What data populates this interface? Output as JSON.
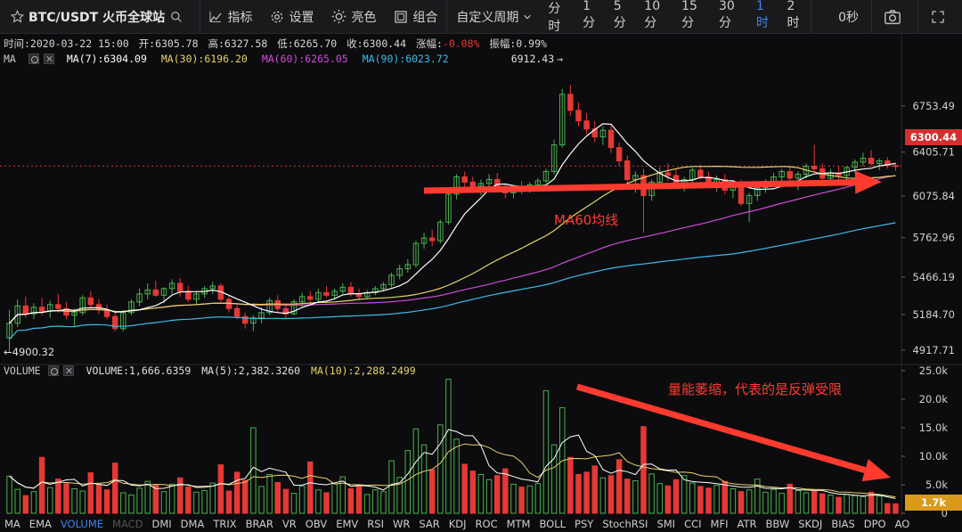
{
  "toolbar": {
    "symbol": "BTC/USDT 火币全球站",
    "indicators": "指标",
    "settings": "设置",
    "theme": "亮色",
    "compose": "组合",
    "custom_period": "自定义周期",
    "periods": [
      "分时",
      "1分",
      "5分",
      "10分",
      "15分",
      "30分",
      "1时",
      "2时"
    ],
    "active_period": "1时",
    "countdown": "0秒"
  },
  "info": {
    "time": "时间:2020-03-22 15:00",
    "open": "开:6305.78",
    "high": "高:6327.58",
    "low": "低:6265.70",
    "close": "收:6300.44",
    "change_label": "涨幅:",
    "change_value": "-0.08%",
    "amplitude": "振幅:0.99%"
  },
  "ma_row": {
    "label": "MA",
    "ma7": "MA(7):6304.09",
    "ma30": "MA(30):6196.20",
    "ma60": "MA(60):6265.05",
    "ma90": "MA(90):6023.72",
    "high_mark": "6912.43"
  },
  "volume_row": {
    "label": "VOLUME",
    "volume": "VOLUME:1,666.6359",
    "ma5": "MA(5):2,382.3260",
    "ma10": "MA(10):2,288.2499"
  },
  "annotations": {
    "ma60_text": "MA60均线",
    "volume_text": "量能萎缩，代表的是反弹受限"
  },
  "current_price": "6300.44",
  "current_volume": "1.7k",
  "indicators_bar": [
    "MA",
    "EMA",
    "VOLUME",
    "MACD",
    "DMI",
    "DMA",
    "TRIX",
    "BRAR",
    "VR",
    "OBV",
    "EMV",
    "RSI",
    "WR",
    "SAR",
    "KDJ",
    "ROC",
    "MTM",
    "BOLL",
    "PSY",
    "StochRSI",
    "SMI",
    "CCI",
    "MFI",
    "ATR",
    "BBW",
    "SKDJ",
    "BIAS",
    "DPO",
    "AO"
  ],
  "colors": {
    "up": "#4caf50",
    "down": "#e53935",
    "ma7": "#ffffff",
    "ma30": "#e6d36a",
    "ma60": "#d24ad8",
    "ma90": "#41b8e8",
    "accent": "#3d86e6",
    "annotation": "#ff3b30"
  },
  "chart_data": {
    "type": "candlestick",
    "price_axis_ticks": [
      "6753.49",
      "6405.71",
      "6075.84",
      "5762.96",
      "5466.19",
      "5184.70",
      "4917.71"
    ],
    "volume_axis_ticks": [
      "25.0k",
      "20.0k",
      "15.0k",
      "10.0k",
      "5.0k",
      "0"
    ],
    "price_range": [
      4830,
      7040
    ],
    "volume_range": [
      0,
      25000
    ],
    "low_mark": "4900.32",
    "candles": [
      [
        5010,
        5220,
        4905,
        5120
      ],
      [
        5120,
        5300,
        5090,
        5250
      ],
      [
        5250,
        5320,
        5160,
        5190
      ],
      [
        5190,
        5270,
        5150,
        5240
      ],
      [
        5240,
        5310,
        5180,
        5210
      ],
      [
        5210,
        5290,
        5160,
        5260
      ],
      [
        5260,
        5340,
        5200,
        5230
      ],
      [
        5230,
        5280,
        5150,
        5180
      ],
      [
        5180,
        5230,
        5100,
        5200
      ],
      [
        5200,
        5330,
        5180,
        5310
      ],
      [
        5310,
        5360,
        5240,
        5260
      ],
      [
        5260,
        5300,
        5190,
        5220
      ],
      [
        5220,
        5260,
        5150,
        5170
      ],
      [
        5170,
        5210,
        5060,
        5080
      ],
      [
        5080,
        5220,
        5060,
        5200
      ],
      [
        5200,
        5300,
        5180,
        5280
      ],
      [
        5280,
        5380,
        5250,
        5340
      ],
      [
        5340,
        5420,
        5300,
        5370
      ],
      [
        5370,
        5440,
        5320,
        5330
      ],
      [
        5330,
        5390,
        5270,
        5380
      ],
      [
        5380,
        5450,
        5340,
        5420
      ],
      [
        5420,
        5460,
        5320,
        5360
      ],
      [
        5360,
        5400,
        5280,
        5300
      ],
      [
        5300,
        5360,
        5260,
        5340
      ],
      [
        5340,
        5400,
        5310,
        5380
      ],
      [
        5380,
        5430,
        5340,
        5400
      ],
      [
        5400,
        5420,
        5280,
        5300
      ],
      [
        5300,
        5330,
        5200,
        5230
      ],
      [
        5230,
        5260,
        5150,
        5170
      ],
      [
        5170,
        5200,
        5080,
        5120
      ],
      [
        5120,
        5180,
        5060,
        5160
      ],
      [
        5160,
        5240,
        5120,
        5200
      ],
      [
        5200,
        5310,
        5180,
        5290
      ],
      [
        5290,
        5330,
        5200,
        5230
      ],
      [
        5230,
        5260,
        5160,
        5190
      ],
      [
        5190,
        5300,
        5180,
        5280
      ],
      [
        5280,
        5350,
        5240,
        5320
      ],
      [
        5320,
        5360,
        5260,
        5300
      ],
      [
        5300,
        5380,
        5280,
        5350
      ],
      [
        5350,
        5400,
        5310,
        5330
      ],
      [
        5330,
        5380,
        5300,
        5360
      ],
      [
        5360,
        5420,
        5340,
        5390
      ],
      [
        5390,
        5430,
        5320,
        5340
      ],
      [
        5340,
        5380,
        5290,
        5320
      ],
      [
        5320,
        5370,
        5300,
        5350
      ],
      [
        5350,
        5400,
        5330,
        5380
      ],
      [
        5380,
        5430,
        5360,
        5410
      ],
      [
        5410,
        5500,
        5390,
        5480
      ],
      [
        5480,
        5560,
        5450,
        5530
      ],
      [
        5530,
        5600,
        5500,
        5560
      ],
      [
        5560,
        5740,
        5540,
        5720
      ],
      [
        5720,
        5800,
        5680,
        5760
      ],
      [
        5760,
        5820,
        5700,
        5740
      ],
      [
        5740,
        5900,
        5720,
        5880
      ],
      [
        5880,
        6120,
        5860,
        6090
      ],
      [
        6090,
        6240,
        6050,
        6220
      ],
      [
        6220,
        6260,
        6140,
        6180
      ],
      [
        6180,
        6220,
        6100,
        6150
      ],
      [
        6150,
        6200,
        6080,
        6170
      ],
      [
        6170,
        6240,
        6130,
        6200
      ],
      [
        6200,
        6250,
        6120,
        6140
      ],
      [
        6140,
        6170,
        6060,
        6100
      ],
      [
        6100,
        6160,
        6060,
        6140
      ],
      [
        6140,
        6190,
        6090,
        6120
      ],
      [
        6120,
        6180,
        6100,
        6160
      ],
      [
        6160,
        6210,
        6120,
        6190
      ],
      [
        6190,
        6280,
        6170,
        6260
      ],
      [
        6260,
        6500,
        6240,
        6460
      ],
      [
        6460,
        6880,
        6440,
        6840
      ],
      [
        6840,
        6912,
        6680,
        6720
      ],
      [
        6720,
        6780,
        6600,
        6640
      ],
      [
        6640,
        6700,
        6540,
        6580
      ],
      [
        6580,
        6640,
        6480,
        6520
      ],
      [
        6520,
        6600,
        6460,
        6570
      ],
      [
        6570,
        6620,
        6400,
        6440
      ],
      [
        6440,
        6480,
        6300,
        6340
      ],
      [
        6340,
        6380,
        6150,
        6200
      ],
      [
        6200,
        6260,
        6100,
        6230
      ],
      [
        6230,
        6280,
        5800,
        6080
      ],
      [
        6080,
        6200,
        6040,
        6180
      ],
      [
        6180,
        6290,
        6150,
        6250
      ],
      [
        6250,
        6320,
        6190,
        6230
      ],
      [
        6230,
        6280,
        6130,
        6160
      ],
      [
        6160,
        6220,
        6110,
        6200
      ],
      [
        6200,
        6290,
        6170,
        6270
      ],
      [
        6270,
        6310,
        6200,
        6220
      ],
      [
        6220,
        6260,
        6140,
        6170
      ],
      [
        6170,
        6230,
        6110,
        6200
      ],
      [
        6200,
        6240,
        6090,
        6120
      ],
      [
        6120,
        6180,
        6060,
        6150
      ],
      [
        6150,
        6200,
        6000,
        6020
      ],
      [
        6020,
        6100,
        5880,
        6080
      ],
      [
        6080,
        6160,
        6040,
        6140
      ],
      [
        6140,
        6200,
        6100,
        6180
      ],
      [
        6180,
        6250,
        6150,
        6220
      ],
      [
        6220,
        6280,
        6190,
        6260
      ],
      [
        6260,
        6300,
        6180,
        6210
      ],
      [
        6210,
        6260,
        6120,
        6240
      ],
      [
        6240,
        6320,
        6210,
        6300
      ],
      [
        6300,
        6460,
        6260,
        6280
      ],
      [
        6280,
        6320,
        6190,
        6210
      ],
      [
        6210,
        6280,
        6170,
        6250
      ],
      [
        6250,
        6300,
        6200,
        6230
      ],
      [
        6230,
        6300,
        6200,
        6290
      ],
      [
        6290,
        6350,
        6250,
        6330
      ],
      [
        6330,
        6400,
        6300,
        6360
      ],
      [
        6360,
        6420,
        6300,
        6320
      ],
      [
        6320,
        6360,
        6270,
        6340
      ],
      [
        6340,
        6370,
        6280,
        6305
      ],
      [
        6305,
        6327,
        6265,
        6300
      ]
    ],
    "volumes": [
      6500,
      4200,
      3100,
      3800,
      9800,
      4500,
      6000,
      5200,
      4300,
      3900,
      7100,
      5000,
      4100,
      8800,
      3600,
      3200,
      4400,
      5600,
      4900,
      3800,
      5100,
      6200,
      4600,
      3700,
      4000,
      5300,
      8500,
      3900,
      7200,
      5800,
      15000,
      4700,
      6800,
      5400,
      4200,
      3500,
      4800,
      9000,
      4100,
      3600,
      5200,
      6400,
      4300,
      4900,
      3300,
      4100,
      3800,
      9200,
      6300,
      11000,
      14800,
      12000,
      7600,
      15500,
      23500,
      13000,
      8600,
      7400,
      6800,
      5900,
      6600,
      7800,
      5100,
      4600,
      4800,
      5200,
      21500,
      12000,
      18500,
      9800,
      6800,
      7200,
      8300,
      6200,
      6600,
      9400,
      6000,
      5700,
      15200,
      6900,
      5200,
      4800,
      5900,
      6600,
      5300,
      4700,
      4400,
      4900,
      5600,
      4300,
      3800,
      4100,
      6000,
      3700,
      4200,
      3500,
      5100,
      4000,
      3600,
      3900,
      3400,
      3200,
      2800,
      3300,
      3100,
      2900,
      3700,
      3000,
      1700,
      1666
    ]
  }
}
